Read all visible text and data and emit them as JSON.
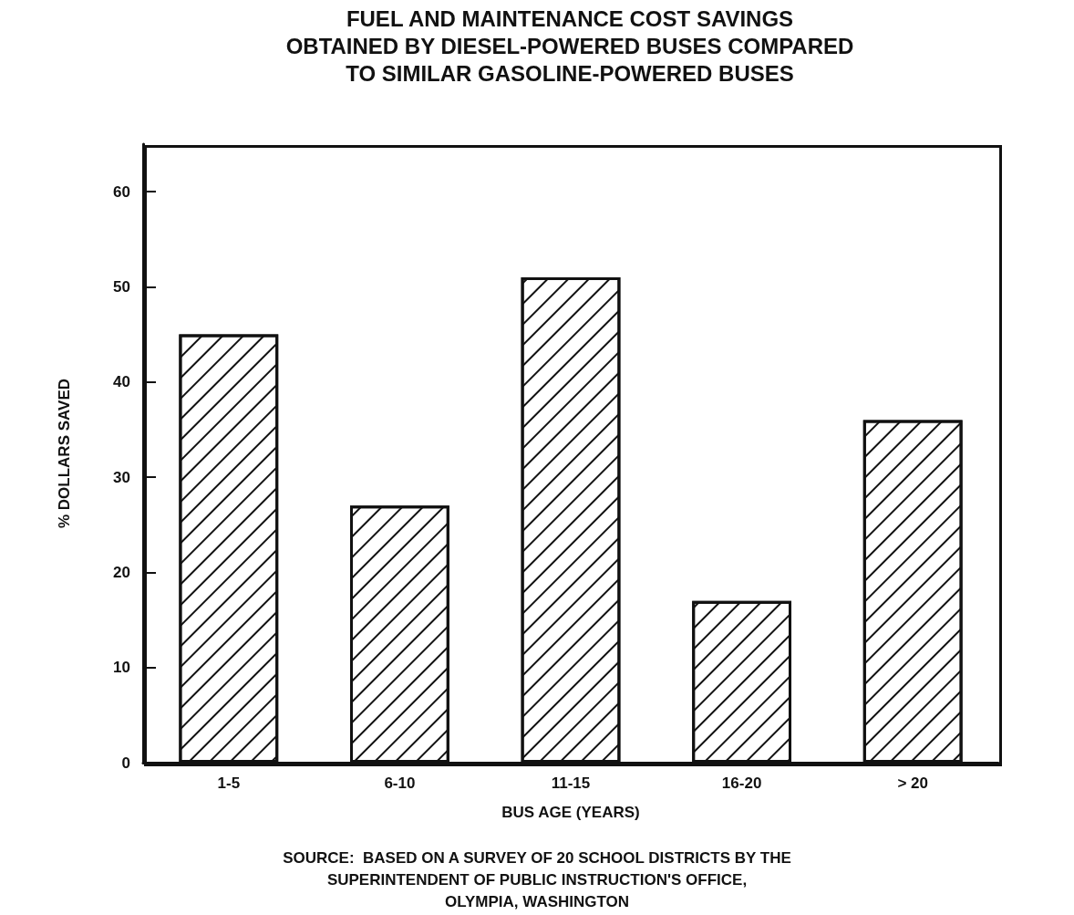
{
  "chart_data": {
    "type": "bar",
    "title": "FUEL AND MAINTENANCE COST SAVINGS\nOBTAINED BY DIESEL-POWERED BUSES COMPARED\nTO SIMILAR GASOLINE-POWERED BUSES",
    "categories": [
      "1-5",
      "6-10",
      "11-15",
      "16-20",
      "> 20"
    ],
    "values": [
      45,
      27,
      51,
      17,
      36
    ],
    "color": "#ffffff",
    "xlabel": "BUS AGE (YEARS)",
    "ylabel": "% DOLLARS SAVED",
    "ylim": [
      0,
      65
    ],
    "yticks": [
      0,
      10,
      20,
      30,
      40,
      50,
      60
    ],
    "annotations": [
      "SOURCE:  BASED ON A SURVEY OF 20 SCHOOL DISTRICTS BY THE\nSUPERINTENDENT OF PUBLIC INSTRUCTION'S OFFICE,\nOLYMPIA, WASHINGTON"
    ],
    "grid": false
  }
}
